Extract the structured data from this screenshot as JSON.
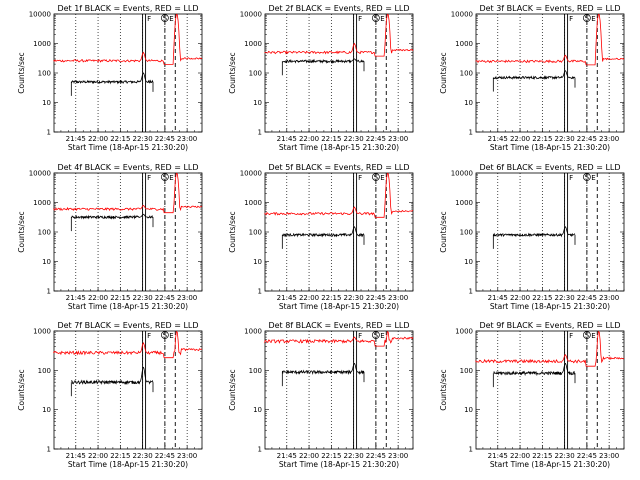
{
  "figure": {
    "xlabel": "Start Time (18-Apr-15 21:30:20)",
    "ylabel": "Counts/sec",
    "x_tick_labels": [
      "21:45",
      "22:00",
      "22:15",
      "22:30",
      "22:45",
      "23:00"
    ],
    "y_tick_labels": [
      "1",
      "10",
      "100",
      "1000",
      "10000"
    ],
    "colors": {
      "events": "#000000",
      "lld": "#ff0000",
      "axes": "#000000",
      "background": "#ffffff"
    }
  },
  "chart_data": [
    {
      "type": "line",
      "panel": 1,
      "title": "Det 1f BLACK = Events, RED = LLD",
      "ylim": [
        1,
        10000
      ],
      "xlim": [
        "21:30:20",
        "23:10"
      ],
      "series": [
        {
          "color": "#000000",
          "level": 50,
          "peak": 100,
          "x_range": [
            "21:42",
            "22:37"
          ]
        },
        {
          "color": "#ff0000",
          "level": 260,
          "peak": 500,
          "x_range": [
            "21:30",
            "23:10"
          ],
          "burst_at": "22:52",
          "burst_peak": 10000
        }
      ],
      "markers": {
        "F": "22:31",
        "S": "22:45",
        "E": "22:52"
      }
    },
    {
      "type": "line",
      "panel": 2,
      "title": "Det 2f BLACK = Events, RED = LLD",
      "ylim": [
        1,
        10000
      ],
      "xlim": [
        "21:30:20",
        "23:10"
      ],
      "series": [
        {
          "color": "#000000",
          "level": 250,
          "peak": 300,
          "x_range": [
            "21:42",
            "22:37"
          ]
        },
        {
          "color": "#ff0000",
          "level": 500,
          "peak": 1000,
          "x_range": [
            "21:30",
            "23:10"
          ],
          "burst_at": "22:52",
          "burst_peak": 10000
        }
      ],
      "markers": {
        "F": "22:31",
        "S": "22:45",
        "E": "22:52"
      }
    },
    {
      "type": "line",
      "panel": 3,
      "title": "Det 3f BLACK = Events, RED = LLD",
      "ylim": [
        1,
        10000
      ],
      "xlim": [
        "21:30:20",
        "23:10"
      ],
      "series": [
        {
          "color": "#000000",
          "level": 70,
          "peak": 120,
          "x_range": [
            "21:42",
            "22:37"
          ]
        },
        {
          "color": "#ff0000",
          "level": 250,
          "peak": 400,
          "x_range": [
            "21:30",
            "23:10"
          ],
          "burst_at": "22:52",
          "burst_peak": 10000
        }
      ],
      "markers": {
        "F": "22:31",
        "S": "22:45",
        "E": "22:52"
      }
    },
    {
      "type": "line",
      "panel": 4,
      "title": "Det 4f BLACK = Events, RED = LLD",
      "ylim": [
        1,
        10000
      ],
      "xlim": [
        "21:30:20",
        "23:10"
      ],
      "series": [
        {
          "color": "#000000",
          "level": 320,
          "peak": 400,
          "x_range": [
            "21:42",
            "22:37"
          ]
        },
        {
          "color": "#ff0000",
          "level": 600,
          "peak": 800,
          "x_range": [
            "21:30",
            "23:10"
          ],
          "burst_at": "22:52",
          "burst_peak": 10000
        }
      ],
      "markers": {
        "F": "22:31",
        "S": "22:45",
        "E": "22:52"
      }
    },
    {
      "type": "line",
      "panel": 5,
      "title": "Det 5f BLACK = Events, RED = LLD",
      "ylim": [
        1,
        10000
      ],
      "xlim": [
        "21:30:20",
        "23:10"
      ],
      "series": [
        {
          "color": "#000000",
          "level": 80,
          "peak": 150,
          "x_range": [
            "21:42",
            "22:37"
          ]
        },
        {
          "color": "#ff0000",
          "level": 420,
          "peak": 700,
          "x_range": [
            "21:30",
            "23:10"
          ],
          "burst_at": "22:52",
          "burst_peak": 10000
        }
      ],
      "markers": {
        "F": "22:31",
        "S": "22:45",
        "E": "22:52"
      }
    },
    {
      "type": "line",
      "panel": 6,
      "title": "Det 6f BLACK = Events, RED = LLD",
      "ylim": [
        1,
        10000
      ],
      "xlim": [
        "21:30:20",
        "23:10"
      ],
      "series": [
        {
          "color": "#000000",
          "level": 80,
          "peak": 150,
          "x_range": [
            "21:42",
            "22:37"
          ]
        }
      ],
      "markers": {
        "F": "22:31",
        "S": "22:45",
        "E": "22:52"
      }
    },
    {
      "type": "line",
      "panel": 7,
      "title": "Det 7f BLACK = Events, RED = LLD",
      "ylim": [
        1,
        1000
      ],
      "xlim": [
        "21:30:20",
        "23:10"
      ],
      "series": [
        {
          "color": "#000000",
          "level": 50,
          "peak": 120,
          "x_range": [
            "21:42",
            "22:37"
          ]
        },
        {
          "color": "#ff0000",
          "level": 280,
          "peak": 500,
          "x_range": [
            "21:30",
            "23:10"
          ],
          "burst_at": "22:52",
          "burst_peak": 1000
        }
      ],
      "markers": {
        "F": "22:31",
        "S": "22:45",
        "E": "22:52"
      }
    },
    {
      "type": "line",
      "panel": 8,
      "title": "Det 8f BLACK = Events, RED = LLD",
      "ylim": [
        1,
        1000
      ],
      "xlim": [
        "21:30:20",
        "23:10"
      ],
      "series": [
        {
          "color": "#000000",
          "level": 90,
          "peak": 150,
          "x_range": [
            "21:42",
            "22:37"
          ]
        },
        {
          "color": "#ff0000",
          "level": 550,
          "peak": 700,
          "x_range": [
            "21:30",
            "23:10"
          ],
          "burst_at": "22:52",
          "burst_peak": 1000
        }
      ],
      "markers": {
        "F": "22:31",
        "S": "22:45",
        "E": "22:52"
      }
    },
    {
      "type": "line",
      "panel": 9,
      "title": "Det 9f BLACK = Events, RED = LLD",
      "ylim": [
        1,
        1000
      ],
      "xlim": [
        "21:30:20",
        "23:10"
      ],
      "series": [
        {
          "color": "#000000",
          "level": 85,
          "peak": 150,
          "x_range": [
            "21:42",
            "22:37"
          ]
        },
        {
          "color": "#ff0000",
          "level": 170,
          "peak": 250,
          "x_range": [
            "21:30",
            "23:10"
          ],
          "burst_at": "22:52",
          "burst_peak": 1000
        }
      ],
      "markers": {
        "F": "22:31",
        "S": "22:45",
        "E": "22:52"
      }
    }
  ]
}
